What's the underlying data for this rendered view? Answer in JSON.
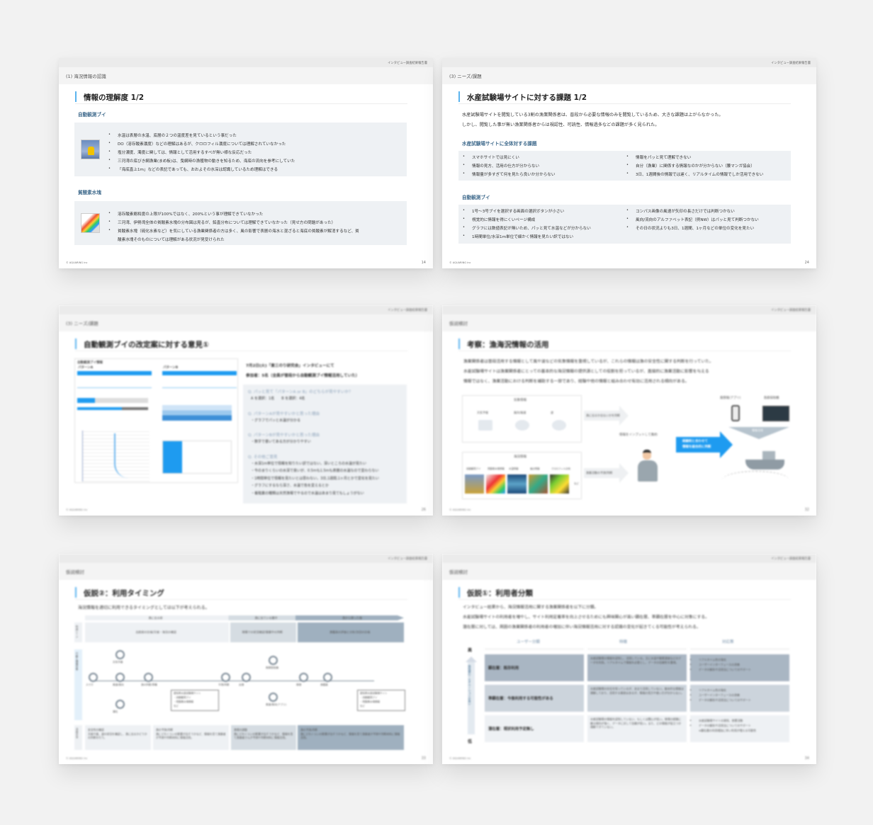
{
  "document_header": "インタビュー調査結果報告書",
  "footer": "© AQUARING inc",
  "slides": [
    {
      "section": "(1) 海況情報の認識",
      "title": "情報の理解度 1/2",
      "page": "14",
      "groups": [
        {
          "heading": "自動観測ブイ",
          "image": "buoy-photo",
          "items": [
            "水温は表層の水温、底層の２つの温度差を見ているという事だった",
            "DO（溶存酸素濃度）などの理解はあるが、クロロフィル濃度については理解されていなかった",
            "塩分濃度、濁度に関しては、情報として活用するすべが無い様な反応だった",
            "三河湾の底びき網漁業(まめ板)は、曳網時の漁獲物の動きを知るため、海底の流向を参考にしていた",
            "「海底直上1m」などの表記であっても、おおよその水深は認識しているため理解はできる"
          ]
        },
        {
          "heading": "貧酸素水塊",
          "image": "hypoxia-map",
          "items": [
            "溶存酸素飽和度の上限が100%ではなく、200%という事が理解できていなかった",
            "三河湾、伊勢湾全体の貧酸素水塊の分布図は見るが、鉛直分布については理解できていなかった（見せ方の問題があった）",
            "貧酸素水塊（硫化水素など）を気にしている漁業関係者の方は多く、風の影響で表層の海水と混ざると海底の貧酸素が解消するなど、貧",
            "酸素水塊そのものについては理解がある状況が見受けられた"
          ]
        }
      ]
    },
    {
      "section": "(3) ニーズ/課題",
      "title": "水産試験場サイトに対する課題 1/2",
      "page": "24",
      "intro": [
        "水産試験場サイトを閲覧している3割の漁業関係者は、普段から必要な情報のみを閲覧しているため、大きな課題は上がらなかった。",
        "しかし、閲覧した事が無い漁業関係者からは視認性、可読性、情報過多などの課題が多く見られた。"
      ],
      "groups": [
        {
          "heading": "水産試験場サイトに全体対する課題",
          "left": [
            "スマホサイトでは見にくい",
            "情報の見方、活用の仕方が分からない",
            "情報量が多すぎて何を見たら良いか分からない"
          ],
          "right": [
            "情報をパッと見て理解できない",
            "自分（漁業）に関係する情報なのかが分からない（腰マンガ協会）",
            "3日、1週間後の情報では遅く、リアルタイムの情報でしか活用できない"
          ]
        },
        {
          "heading": "自動観測ブイ",
          "left": [
            "1号～3号ブイを選択する画面の選択ボタンが小さい",
            "視覚的に情報を得にくいページ構成",
            "グラフには数値表記が無いため、パッと見て水温などが分からない",
            "1時間単位/水深1m単位で細かく情報を見たい訳ではない"
          ],
          "right": [
            "コンパス画像の風速が矢印の長さだけでは判断つかない",
            "風向/流向のアルファベット表記（例NW）はパッと見て判断つかない",
            "その日の状況よりも3日、1週間、1ヶ月などの単位の変化を見たい"
          ]
        }
      ]
    },
    {
      "section": "(3) ニーズ/課題",
      "title": "自動観測ブイの改定案に対する意見①",
      "page": "26",
      "mock_title": "自動観測ブイ情報",
      "pattern_a": "パターンA",
      "pattern_b": "パターンB",
      "meta": [
        "7月2日(火)「東三のり研究会」インタビューにて",
        "参加者：5名（全員が普段から自動観測ブイ情報活用していた）"
      ],
      "qa": [
        {
          "q": "Q. パッと見て「パターンA or B」のどちらが見やすいか？",
          "a": [
            "A を選択：1名　　B を選択：4名"
          ]
        },
        {
          "q": "Q. パターンAが見やすいかと思った理由",
          "a": [
            "・グラフでパッと水温が分かる"
          ]
        },
        {
          "q": "Q. パターンBが見やすいかと思った理由",
          "a": [
            "・数字で書いてある方が分かりやすい"
          ]
        },
        {
          "q": "Q. その他ご意見",
          "a": [
            "・水深1m単位で情報を知りたい訳ではない。深いところの水温が見たい",
            "・今のまりくらいの水深で良いが、0.5mも1.5mも表層の水温なので変わらない",
            "・1時間単位で情報を見たいとは思わない。3日,1週間,1ヶ月とかで変化を見たい",
            "・グラフにするなら深さ、水温で色を変えるとか",
            "・養殖業の種類は天然漁場でやるので水温はあまり見てもしょうがない"
          ]
        }
      ]
    },
    {
      "section": "仮説検討",
      "title": "考察：漁海況情報の活用",
      "page": "32",
      "intro": [
        "漁業関係者は普段活用する情報として風や波などの気象情報を重視しているが、これらの情報は漁の安全性に関する判断を行っていた。",
        "水産試験場サイトは漁業関係者にとっての基本的な海況情報の提供源としての役割を担っているが、直接的に漁業活動に影響を与える",
        "情報ではなく、漁業活動における判断を補助する一部であり、経験や他の情報と組み合わせ有効に活用される傾向がある。"
      ],
      "weather": {
        "heading": "気象情報",
        "items": [
          "天気予報",
          "風向/風速",
          "波"
        ]
      },
      "ocean": {
        "heading": "海況情報",
        "items": [
          "自動観測ブイ",
          "貧酸素水塊情報",
          "水温情報",
          "塩分情報",
          "クロロフィル分布"
        ],
        "more": "など"
      },
      "arrow_weather": "漁に出るか出ないかを判断",
      "arrow_ocean": "漁業活動の予測/判断",
      "person_label": "情報をインプットして集約",
      "blue_arrow": [
        "経験則と合わせて",
        "情報を総合的に判断"
      ],
      "right_labels": [
        "風情報(アプリ)",
        "魚群探知機"
      ],
      "funnel": "情報活用"
    },
    {
      "section": "仮説検討",
      "title": "仮説②：利用タイミング",
      "page": "33",
      "intro": "海況情報を適切に利用できるタイミングとしては以下が考えられる。",
      "row_labels": [
        "利用シーン",
        "行動と情報収集",
        "活用方法"
      ],
      "phases": [
        "漁に出る前",
        "漁に出ている最中",
        "漁から帰った後"
      ],
      "scenes": [
        "出航前の計画/天候・海況の確認",
        "現場での状況確認/操業中の判断",
        "漁獲高の評価と分析/次回の計画"
      ],
      "flow": [
        "スマホ",
        "天気予報",
        "風速/風向",
        "潮位",
        "漁の判断/準備",
        "予測/判断",
        "出港",
        "魚群探知機",
        "風速/風向(アプリ)",
        "帰港",
        "漁獲高"
      ],
      "site_box": [
        "愛知県水産試験場サイト",
        "・自動観測ブイ",
        "・貧酸素水塊情報",
        "など"
      ],
      "usage": [
        [
          "安全性の確認",
          "天候や風、波の状況を確認し、漁に出るかどうかの判断を行う。"
        ],
        [
          "漁の予測/判断",
          "漁にどれくらいの影響が出そうかなど、情報を見て漁業者が予測や判断材料に情報活用。"
        ],
        [
          "漁場の調整",
          "漁にどれくらいの影響が出そうかなど、情報を見て漁業者さんが予測や判断材料に情報活用。"
        ],
        [
          "漁の予測/判断",
          "漁にどれくらいの影響が出そうかなど、情報を見て漁業者が予測や判断材料に情報活用。"
        ]
      ]
    },
    {
      "section": "仮説検討",
      "title": "仮説①：利用者分類",
      "page": "34",
      "intro": [
        "インタビュー結果から、海況情報活用に関する漁業関係者を以下に分類。",
        "水産試験場サイトの利用者を増やし、サイト利用定着率を向上させるためにも興味関心が高い顕在層、準顕在層を中心に対象にする。",
        "潜在層に対しては、周囲の漁業関係者の利用者の増加に伴い海況情報活用に対する認識の変化が起きてくる可能性が考えられる。"
      ],
      "axis": {
        "high": "高",
        "low": "低",
        "label": "興味関心・モチベーションが高い"
      },
      "columns": [
        "ユーザー分類",
        "特徴",
        "対応策"
      ],
      "rows": [
        {
          "segment": "顕在層：既存利用",
          "feature": "水産試験場の情報を認知し、活用している。主に水温や酸素濃度などのデータを利用。リアルタイムで情報を必要とし、データの信頼性を重視。",
          "measures": [
            "リアルタイム性の強化",
            "ユーザーインターフェースの改善",
            "データの解析や活用法についてのサポート"
          ]
        },
        {
          "segment": "準顕在層：今後利用する可能性がある",
          "feature": "水産試験場の存在を知っているが、あまり活用していない。基本的な情報は理解しており、活用する意欲はあるが、情報の見方や使い方が分からない。",
          "measures": [
            "リアルタイム性の強化",
            "ユーザーインターフェースの改善",
            "データの解析や活用法についてのサポート"
          ]
        },
        {
          "segment": "潜在層：現状利用予定無し",
          "feature": "水産試験場の情報を認知していない、もしくは関心が低い。現場の経験に頼る傾向が強く、データに対して信頼が低い。また、どの情報が役立つか理解できていない。",
          "measures": [
            "水産試験場サイトの周知、啓蒙活動",
            "データの解析や活用法についてのサポート",
            "※顕在層の利用増加に伴い利用が増える可能性"
          ]
        }
      ]
    }
  ],
  "colors": {
    "accent": "#5bb4ee",
    "heading": "#3f6a8c",
    "box": "#eef1f4",
    "blue_arrow": "#1e9bf0"
  }
}
